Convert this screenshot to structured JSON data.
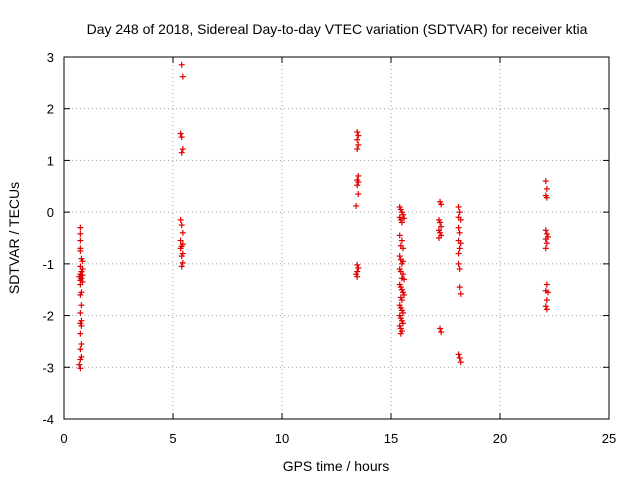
{
  "chart_data": {
    "type": "scatter",
    "title": "Day 248 of 2018, Sidereal Day-to-day VTEC variation (SDTVAR) for receiver ktia",
    "xlabel": "GPS time / hours",
    "ylabel": "SDTVAR / TECUs",
    "xlim": [
      0,
      25
    ],
    "ylim": [
      -4,
      3
    ],
    "xticks": [
      0,
      5,
      10,
      15,
      20,
      25
    ],
    "yticks": [
      -4,
      -3,
      -2,
      -1,
      0,
      1,
      2,
      3
    ],
    "grid": true,
    "marker": "+",
    "marker_color": "#e00000",
    "series": [
      {
        "name": "SDTVAR",
        "points": [
          [
            0.75,
            -0.3
          ],
          [
            0.75,
            -0.42
          ],
          [
            0.75,
            -0.55
          ],
          [
            0.75,
            -0.7
          ],
          [
            0.75,
            -0.75
          ],
          [
            0.8,
            -0.9
          ],
          [
            0.85,
            -0.95
          ],
          [
            0.75,
            -1.05
          ],
          [
            0.85,
            -1.1
          ],
          [
            0.8,
            -1.15
          ],
          [
            0.75,
            -1.2
          ],
          [
            0.85,
            -1.22
          ],
          [
            0.7,
            -1.25
          ],
          [
            0.8,
            -1.28
          ],
          [
            0.75,
            -1.32
          ],
          [
            0.85,
            -1.35
          ],
          [
            0.75,
            -1.4
          ],
          [
            0.8,
            -1.55
          ],
          [
            0.75,
            -1.6
          ],
          [
            0.8,
            -1.8
          ],
          [
            0.75,
            -1.95
          ],
          [
            0.8,
            -2.1
          ],
          [
            0.75,
            -2.15
          ],
          [
            0.8,
            -2.2
          ],
          [
            0.75,
            -2.35
          ],
          [
            0.8,
            -2.55
          ],
          [
            0.75,
            -2.65
          ],
          [
            0.8,
            -2.8
          ],
          [
            0.75,
            -2.85
          ],
          [
            0.7,
            -2.95
          ],
          [
            0.75,
            -3.02
          ],
          [
            5.4,
            2.85
          ],
          [
            5.45,
            2.62
          ],
          [
            5.35,
            1.52
          ],
          [
            5.4,
            1.45
          ],
          [
            5.45,
            1.22
          ],
          [
            5.4,
            1.15
          ],
          [
            5.35,
            -0.15
          ],
          [
            5.4,
            -0.25
          ],
          [
            5.45,
            -0.4
          ],
          [
            5.35,
            -0.55
          ],
          [
            5.45,
            -0.62
          ],
          [
            5.4,
            -0.66
          ],
          [
            5.35,
            -0.7
          ],
          [
            5.45,
            -0.8
          ],
          [
            5.4,
            -0.85
          ],
          [
            5.45,
            -0.98
          ],
          [
            5.4,
            -1.05
          ],
          [
            13.45,
            1.55
          ],
          [
            13.5,
            1.48
          ],
          [
            13.45,
            1.4
          ],
          [
            13.5,
            1.3
          ],
          [
            13.45,
            1.22
          ],
          [
            13.5,
            0.7
          ],
          [
            13.45,
            0.62
          ],
          [
            13.5,
            0.58
          ],
          [
            13.45,
            0.52
          ],
          [
            13.5,
            0.35
          ],
          [
            13.4,
            0.12
          ],
          [
            13.45,
            -1.02
          ],
          [
            13.5,
            -1.08
          ],
          [
            13.45,
            -1.15
          ],
          [
            13.4,
            -1.2
          ],
          [
            13.45,
            -1.25
          ],
          [
            15.4,
            0.1
          ],
          [
            15.45,
            0.05
          ],
          [
            15.5,
            0.0
          ],
          [
            15.55,
            -0.05
          ],
          [
            15.4,
            -0.1
          ],
          [
            15.6,
            -0.12
          ],
          [
            15.45,
            -0.15
          ],
          [
            15.5,
            -0.2
          ],
          [
            15.4,
            -0.45
          ],
          [
            15.5,
            -0.55
          ],
          [
            15.45,
            -0.65
          ],
          [
            15.55,
            -0.7
          ],
          [
            15.4,
            -0.85
          ],
          [
            15.45,
            -0.92
          ],
          [
            15.55,
            -0.95
          ],
          [
            15.5,
            -1.0
          ],
          [
            15.4,
            -1.1
          ],
          [
            15.45,
            -1.15
          ],
          [
            15.55,
            -1.2
          ],
          [
            15.5,
            -1.28
          ],
          [
            15.6,
            -1.3
          ],
          [
            15.4,
            -1.4
          ],
          [
            15.45,
            -1.45
          ],
          [
            15.5,
            -1.5
          ],
          [
            15.55,
            -1.55
          ],
          [
            15.6,
            -1.6
          ],
          [
            15.45,
            -1.65
          ],
          [
            15.5,
            -1.7
          ],
          [
            15.4,
            -1.8
          ],
          [
            15.45,
            -1.85
          ],
          [
            15.5,
            -1.9
          ],
          [
            15.55,
            -1.95
          ],
          [
            15.4,
            -2.0
          ],
          [
            15.45,
            -2.05
          ],
          [
            15.5,
            -2.1
          ],
          [
            15.55,
            -2.15
          ],
          [
            15.4,
            -2.2
          ],
          [
            15.45,
            -2.25
          ],
          [
            15.5,
            -2.3
          ],
          [
            15.45,
            -2.35
          ],
          [
            17.25,
            0.2
          ],
          [
            17.3,
            0.15
          ],
          [
            17.2,
            -0.15
          ],
          [
            17.25,
            -0.2
          ],
          [
            17.3,
            -0.28
          ],
          [
            17.2,
            -0.35
          ],
          [
            17.25,
            -0.4
          ],
          [
            17.3,
            -0.45
          ],
          [
            17.2,
            -0.5
          ],
          [
            17.25,
            -2.25
          ],
          [
            17.3,
            -2.32
          ],
          [
            18.1,
            0.1
          ],
          [
            18.15,
            0.0
          ],
          [
            18.1,
            -0.1
          ],
          [
            18.2,
            -0.15
          ],
          [
            18.1,
            -0.3
          ],
          [
            18.15,
            -0.4
          ],
          [
            18.1,
            -0.55
          ],
          [
            18.2,
            -0.6
          ],
          [
            18.15,
            -0.7
          ],
          [
            18.1,
            -0.8
          ],
          [
            18.1,
            -1.0
          ],
          [
            18.15,
            -1.1
          ],
          [
            18.15,
            -1.45
          ],
          [
            18.2,
            -1.58
          ],
          [
            18.1,
            -2.75
          ],
          [
            18.15,
            -2.82
          ],
          [
            18.2,
            -2.9
          ],
          [
            22.1,
            0.6
          ],
          [
            22.15,
            0.45
          ],
          [
            22.1,
            0.32
          ],
          [
            22.15,
            0.28
          ],
          [
            22.1,
            -0.35
          ],
          [
            22.15,
            -0.42
          ],
          [
            22.2,
            -0.48
          ],
          [
            22.1,
            -0.52
          ],
          [
            22.15,
            -0.6
          ],
          [
            22.1,
            -0.7
          ],
          [
            22.15,
            -1.4
          ],
          [
            22.1,
            -1.52
          ],
          [
            22.2,
            -1.55
          ],
          [
            22.15,
            -1.7
          ],
          [
            22.1,
            -1.82
          ],
          [
            22.15,
            -1.88
          ]
        ]
      }
    ]
  }
}
